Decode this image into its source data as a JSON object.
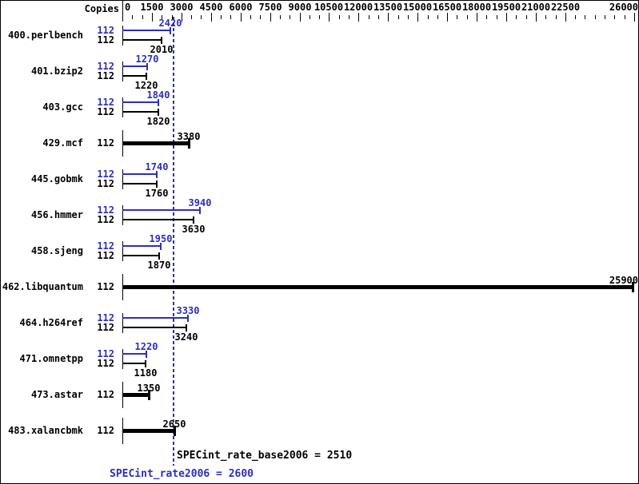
{
  "header": {
    "copies_label": "Copies"
  },
  "footer": {
    "base_text": "SPECint_rate_base2006 = 2510",
    "peak_text": "SPECint_rate2006 = 2600"
  },
  "colors": {
    "peak_blue": "#2e2eb8",
    "base_black": "#000000",
    "background": "#ffffff"
  },
  "chart_data": {
    "type": "bar",
    "orientation": "horizontal",
    "title": "",
    "xlabel": "",
    "ylabel": "Copies",
    "axis": {
      "min": 0,
      "max": 26000,
      "major_step": 1500,
      "minor_step": 500,
      "max_labeled_major": 22500,
      "end_label": 26000,
      "tick_labels": [
        "0",
        "1500",
        "3000",
        "4500",
        "6000",
        "7500",
        "9000",
        "10500",
        "12000",
        "13500",
        "15000",
        "16500",
        "18000",
        "19500",
        "21000",
        "22500",
        "26000"
      ]
    },
    "series_legend": {
      "peak_color_meaning": "peak (blue)",
      "base_color_meaning": "base (black)"
    },
    "benchmarks": [
      {
        "name": "400.perlbench",
        "copies": 112,
        "peak": 2420,
        "base": 2010,
        "single_bar": false
      },
      {
        "name": "401.bzip2",
        "copies": 112,
        "peak": 1270,
        "base": 1220,
        "single_bar": false
      },
      {
        "name": "403.gcc",
        "copies": 112,
        "peak": 1840,
        "base": 1820,
        "single_bar": false
      },
      {
        "name": "429.mcf",
        "copies": 112,
        "peak": 3380,
        "base": 3380,
        "single_bar": true
      },
      {
        "name": "445.gobmk",
        "copies": 112,
        "peak": 1740,
        "base": 1760,
        "single_bar": false
      },
      {
        "name": "456.hmmer",
        "copies": 112,
        "peak": 3940,
        "base": 3630,
        "single_bar": false
      },
      {
        "name": "458.sjeng",
        "copies": 112,
        "peak": 1950,
        "base": 1870,
        "single_bar": false
      },
      {
        "name": "462.libquantum",
        "copies": 112,
        "peak": 25900,
        "base": 25900,
        "single_bar": true
      },
      {
        "name": "464.h264ref",
        "copies": 112,
        "peak": 3330,
        "base": 3240,
        "single_bar": false
      },
      {
        "name": "471.omnetpp",
        "copies": 112,
        "peak": 1220,
        "base": 1180,
        "single_bar": false
      },
      {
        "name": "473.astar",
        "copies": 112,
        "peak": 1350,
        "base": 1350,
        "single_bar": true
      },
      {
        "name": "483.xalancbmk",
        "copies": 112,
        "peak": 2650,
        "base": 2650,
        "single_bar": true
      }
    ],
    "results": {
      "base_label": "SPECint_rate_base2006",
      "base_value": 2510,
      "peak_label": "SPECint_rate2006",
      "peak_value": 2600
    },
    "reference_line_value": 2600
  }
}
